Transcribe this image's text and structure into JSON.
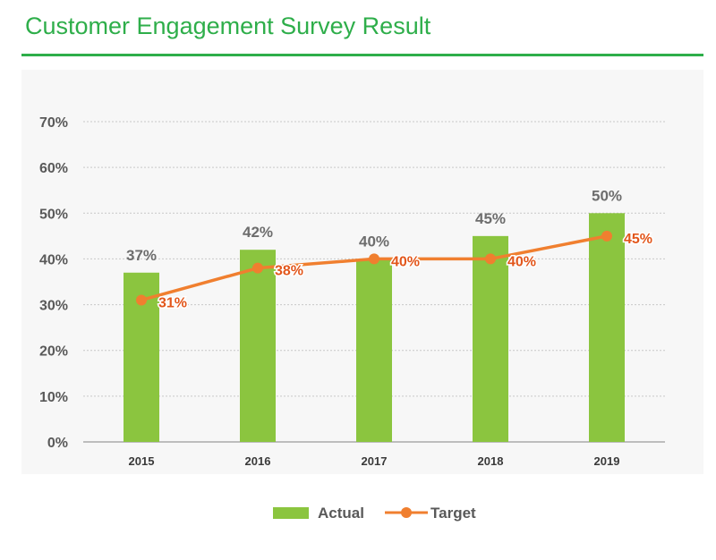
{
  "header": {
    "title": "Customer Engagement Survey Result"
  },
  "colors": {
    "accent": "#2eae4a",
    "bar": "#8bc53f",
    "line": "#f07f2f",
    "line_label": "#e2561b",
    "axis_text": "#595959",
    "bar_label": "#6d6d6d"
  },
  "chart_data": {
    "type": "bar",
    "title": "Customer Engagement Survey Result",
    "categories": [
      "2015",
      "2016",
      "2017",
      "2018",
      "2019"
    ],
    "series": [
      {
        "name": "Actual",
        "type": "bar",
        "values": [
          37,
          42,
          40,
          45,
          50
        ],
        "labels": [
          "37%",
          "42%",
          "40%",
          "45%",
          "50%"
        ]
      },
      {
        "name": "Target",
        "type": "line",
        "values": [
          31,
          38,
          40,
          40,
          45
        ],
        "labels": [
          "31%",
          "38%",
          "40%",
          "40%",
          "45%"
        ]
      }
    ],
    "ylim": [
      0,
      70
    ],
    "yticks": [
      0,
      10,
      20,
      30,
      40,
      50,
      60,
      70
    ],
    "ytick_labels": [
      "0%",
      "10%",
      "20%",
      "30%",
      "40%",
      "50%",
      "60%",
      "70%"
    ],
    "grid": true,
    "legend": {
      "position": "bottom",
      "entries": [
        "Actual",
        "Target"
      ]
    }
  }
}
